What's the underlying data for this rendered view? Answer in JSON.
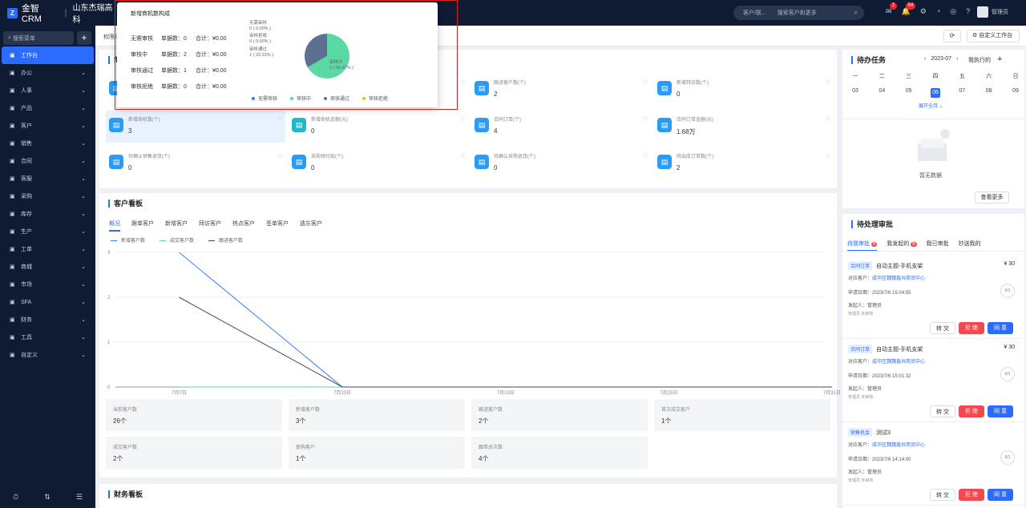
{
  "app": {
    "logo": "金智CRM",
    "company": "山东杰瑞高科"
  },
  "topbar": {
    "search_scope": "客户/联...",
    "search_placeholder": "搜索客户和更多",
    "user": "管理员",
    "badges": {
      "messages": "1",
      "notices": "64"
    }
  },
  "sidebar": {
    "search_placeholder": "搜索菜单",
    "items": [
      {
        "label": "工作台",
        "icon": "dashboard-icon",
        "active": true
      },
      {
        "label": "办公",
        "icon": "office-icon"
      },
      {
        "label": "人事",
        "icon": "person-icon"
      },
      {
        "label": "产品",
        "icon": "product-icon"
      },
      {
        "label": "客户",
        "icon": "customer-icon"
      },
      {
        "label": "销售",
        "icon": "sales-icon"
      },
      {
        "label": "合同",
        "icon": "contract-icon"
      },
      {
        "label": "客服",
        "icon": "service-icon"
      },
      {
        "label": "采购",
        "icon": "purchase-icon"
      },
      {
        "label": "库存",
        "icon": "stock-icon"
      },
      {
        "label": "生产",
        "icon": "production-icon"
      },
      {
        "label": "工单",
        "icon": "ticket-icon"
      },
      {
        "label": "商城",
        "icon": "mall-icon"
      },
      {
        "label": "市场",
        "icon": "market-icon"
      },
      {
        "label": "SFA",
        "icon": "sfa-icon"
      },
      {
        "label": "财务",
        "icon": "finance-icon"
      },
      {
        "label": "工具",
        "icon": "tool-icon"
      },
      {
        "label": "自定义",
        "icon": "custom-icon"
      }
    ]
  },
  "subheader": {
    "tab": "权限内",
    "refresh": "⟳",
    "custom_workspace": "自定义工作台"
  },
  "summary": {
    "title": "简报",
    "cells": [
      {
        "label": "",
        "value": "",
        "icon": "chart-icon"
      },
      {
        "label": "",
        "value": "",
        "icon": "user-icon"
      },
      {
        "label": "跟进客户数(个)",
        "value": "2",
        "icon": "edit-icon"
      },
      {
        "label": "新增拜访数(个)",
        "value": "0",
        "icon": "visit-icon"
      },
      {
        "label": "新增商机数(个)",
        "value": "3",
        "icon": "target-icon"
      },
      {
        "label": "新增商机金额(元)",
        "value": "0",
        "icon": "money-icon"
      },
      {
        "label": "合同订单(个)",
        "value": "4",
        "icon": "order-icon"
      },
      {
        "label": "合同订单金额(元)",
        "value": "1.68万",
        "icon": "amount-icon"
      },
      {
        "label": "待确认销售退货(个)",
        "value": "0",
        "icon": "return-icon"
      },
      {
        "label": "采购预付款(个)",
        "value": "0",
        "icon": "prepay-icon"
      },
      {
        "label": "待确认采购退货(个)",
        "value": "0",
        "icon": "purchase-return-icon"
      },
      {
        "label": "待出库订单数(个)",
        "value": "2",
        "icon": "outbound-icon"
      }
    ]
  },
  "popup": {
    "title": "新增商机数构成",
    "rows": [
      {
        "status": "无需审核",
        "count_label": "单据数：0",
        "total_label": "合计：¥0.00"
      },
      {
        "status": "审核中",
        "count_label": "单据数：2",
        "total_label": "合计：¥0.00"
      },
      {
        "status": "审核通过",
        "count_label": "单据数：1",
        "total_label": "合计：¥0.00"
      },
      {
        "status": "审核拒绝",
        "count_label": "单据数：0",
        "total_label": "合计：¥0.00"
      }
    ],
    "pie_labels": [
      {
        "name": "无需审核",
        "value": "0 ( 0.00% )"
      },
      {
        "name": "审核拒绝",
        "value": "0 ( 0.00% )"
      },
      {
        "name": "审核通过",
        "value": "1 ( 33.33% )"
      },
      {
        "name": "审核中",
        "value": "2 ( 66.67% )"
      }
    ],
    "legend": [
      {
        "name": "无需审核",
        "color": "#3b7df8"
      },
      {
        "name": "审核中",
        "color": "#5ad8a6"
      },
      {
        "name": "审核通过",
        "color": "#5d7092"
      },
      {
        "name": "审核拒绝",
        "color": "#f6bd16"
      }
    ]
  },
  "chart_data": {
    "type": "pie",
    "title": "新增商机数构成",
    "slices": [
      {
        "name": "无需审核",
        "value": 0,
        "color": "#3b7df8"
      },
      {
        "name": "审核中",
        "value": 2,
        "color": "#5ad8a6"
      },
      {
        "name": "审核通过",
        "value": 1,
        "color": "#5d7092"
      },
      {
        "name": "审核拒绝",
        "value": 0,
        "color": "#f6bd16"
      }
    ]
  },
  "customer_board": {
    "title": "客户看板",
    "tabs": [
      "概况",
      "跟单客户",
      "新增客户",
      "拜访客户",
      "热点客户",
      "签单客户",
      "遗忘客户"
    ],
    "series": [
      {
        "name": "新增客户数",
        "color": "#3b7df8",
        "values": [
          3,
          0,
          0,
          0,
          0
        ]
      },
      {
        "name": "成交客户数",
        "color": "#5ad8a6",
        "values": [
          0,
          0,
          0,
          0,
          0
        ]
      },
      {
        "name": "跟进客户数",
        "color": "#3c4b66",
        "values": [
          2,
          0,
          0,
          0,
          0
        ]
      }
    ],
    "x": [
      "7月7日",
      "7月13日",
      "7月19日",
      "7月25日",
      "7月31日"
    ],
    "y_ticks": [
      "0",
      "1",
      "2",
      "3"
    ],
    "ylim": [
      0,
      3
    ],
    "stats": [
      {
        "label": "当前客户数",
        "value": "26个"
      },
      {
        "label": "新增客户数",
        "value": "3个"
      },
      {
        "label": "跟进客户数",
        "value": "2个"
      },
      {
        "label": "首次成交客户",
        "value": "1个"
      },
      {
        "label": "成交客户数",
        "value": "2个"
      },
      {
        "label": "复购客户",
        "value": "1个"
      },
      {
        "label": "跟单总次数",
        "value": "4个"
      }
    ]
  },
  "finance_board": {
    "title": "财务看板"
  },
  "tasks": {
    "title": "待办任务",
    "month": "2023-07",
    "filter": "我执行的",
    "weekdays": [
      "一",
      "二",
      "三",
      "四",
      "五",
      "六",
      "日"
    ],
    "dates": [
      "03",
      "04",
      "05",
      "06",
      "07",
      "08",
      "09"
    ],
    "today": "06",
    "expand": "展开全月",
    "empty": "暂无数据",
    "more": "查看更多"
  },
  "approvals": {
    "title": "待处理审批",
    "tabs": [
      {
        "label": "待我审批",
        "badge": "6"
      },
      {
        "label": "我发起的",
        "badge": "6"
      },
      {
        "label": "我已审批",
        "badge": ""
      },
      {
        "label": "抄送我的",
        "badge": ""
      }
    ],
    "items": [
      {
        "tag": "合同订单",
        "subject": "自动主题-手机支架",
        "amount": "¥ 30",
        "customer_label": "对应客户：",
        "customer": "成华区魏魏鑫共简贸中心",
        "date": "申请日期：2023/7/6 15:04:55",
        "progress": "0/1",
        "initiator": "发起人：管理员",
        "approver": "管理员 未审核"
      },
      {
        "tag": "合同订单",
        "subject": "自动主题-手机支架",
        "amount": "¥ 30",
        "customer_label": "对应客户：",
        "customer": "成华区魏魏鑫共简贸中心",
        "date": "申请日期：2023/7/6 15:01:32",
        "progress": "0/1",
        "initiator": "发起人：管理员",
        "approver": "管理员 未审核"
      },
      {
        "tag": "销售机会",
        "subject": "测试3",
        "amount": "",
        "customer_label": "对应客户：",
        "customer": "成华区魏魏鑫共简贸中心",
        "date": "申请日期：2023/7/6 14:14:00",
        "progress": "0/1",
        "initiator": "发起人：管理员",
        "approver": "管理员 未审核"
      }
    ],
    "transfer": "转 交",
    "reject": "拒 绝",
    "agree": "同 意"
  }
}
